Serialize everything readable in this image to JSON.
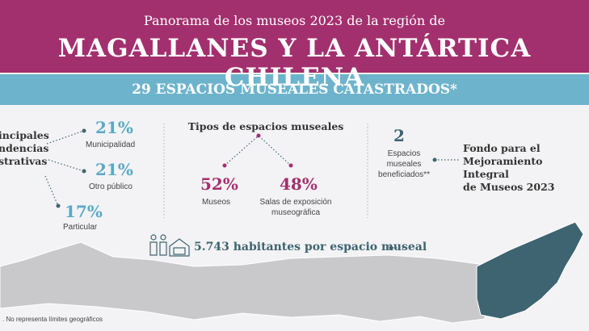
{
  "header": {
    "subtitle": "Panorama de los museos 2023 de la región de",
    "title": "MAGALLANES Y LA ANTÁRTICA CHILENA"
  },
  "band": {
    "text": "29 ESPACIOS MUSEALES CATASTRADOS*"
  },
  "dependencias": {
    "heading": [
      "incipales",
      "ndencias",
      "strativas"
    ],
    "items": [
      {
        "value": "21%",
        "label": "Municipalidad"
      },
      {
        "value": "21%",
        "label": "Otro público"
      },
      {
        "value": "17%",
        "label": "Particular"
      }
    ]
  },
  "tipos": {
    "heading": "Tipos de espacios museales",
    "items": [
      {
        "value": "52%",
        "label": [
          "Museos"
        ]
      },
      {
        "value": "48%",
        "label": [
          "Salas de exposición",
          "museográfica"
        ]
      }
    ]
  },
  "fondo": {
    "value": "2",
    "label": [
      "Espacios",
      "museales",
      "beneficiados**"
    ],
    "heading": [
      "Fondo para el",
      "Mejoramiento Integral",
      "de Museos 2023"
    ]
  },
  "habitantes": {
    "text": "5.743 habitantes por espacio museal"
  },
  "footnote": ". No representa límites geográficos"
}
